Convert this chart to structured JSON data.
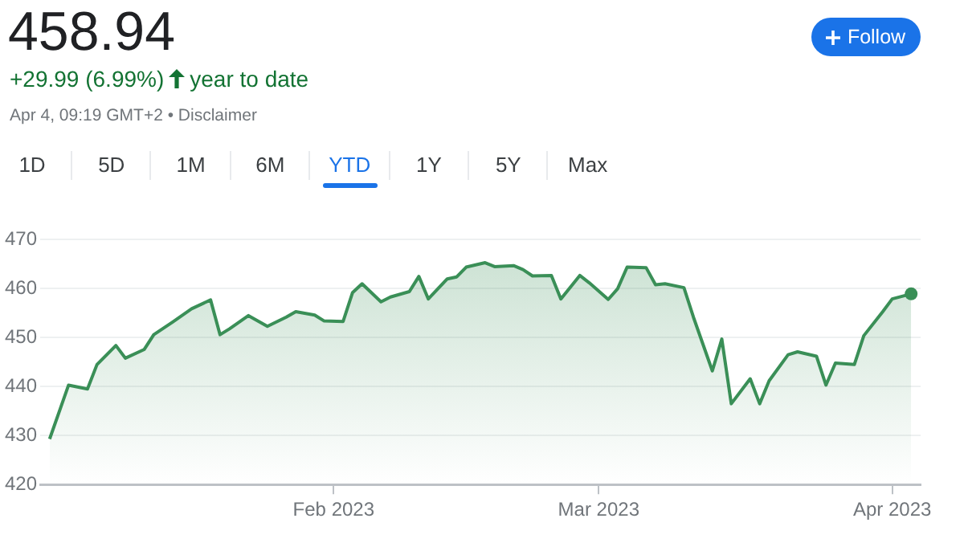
{
  "chart_data": {
    "type": "area",
    "title": "458.94",
    "annotations": [
      "+29.99 (6.99%)",
      "year to date",
      "Apr 4, 09:19 GMT+2 • Disclaimer",
      "Follow",
      "1D",
      "5D",
      "1M",
      "6M",
      "YTD",
      "1Y",
      "5Y",
      "Max"
    ],
    "x": [
      "2023-01-02",
      "2023-01-04",
      "2023-01-06",
      "2023-01-07",
      "2023-01-09",
      "2023-01-10",
      "2023-01-12",
      "2023-01-13",
      "2023-01-15",
      "2023-01-17",
      "2023-01-19",
      "2023-01-20",
      "2023-01-21",
      "2023-01-23",
      "2023-01-25",
      "2023-01-27",
      "2023-01-28",
      "2023-01-30",
      "2023-01-31",
      "2023-02-02",
      "2023-02-03",
      "2023-02-04",
      "2023-02-06",
      "2023-02-07",
      "2023-02-09",
      "2023-02-10",
      "2023-02-11",
      "2023-02-13",
      "2023-02-14",
      "2023-02-15",
      "2023-02-17",
      "2023-02-18",
      "2023-02-20",
      "2023-02-21",
      "2023-02-22",
      "2023-02-24",
      "2023-02-25",
      "2023-02-27",
      "2023-02-28",
      "2023-03-02",
      "2023-03-03",
      "2023-03-04",
      "2023-03-06",
      "2023-03-07",
      "2023-03-08",
      "2023-03-10",
      "2023-03-11",
      "2023-03-13",
      "2023-03-14",
      "2023-03-15",
      "2023-03-17",
      "2023-03-18",
      "2023-03-19",
      "2023-03-21",
      "2023-03-22",
      "2023-03-24",
      "2023-03-25",
      "2023-03-26",
      "2023-03-28",
      "2023-03-29",
      "2023-03-31",
      "2023-04-01",
      "2023-04-03"
    ],
    "series": [
      {
        "color": "#3a8f57",
        "values": [
          429.3,
          440.3,
          439.5,
          444.5,
          448.4,
          445.8,
          447.6,
          450.6,
          453.2,
          455.9,
          457.7,
          450.6,
          451.8,
          454.5,
          452.3,
          454.2,
          455.3,
          454.6,
          453.4,
          453.3,
          459.2,
          461.0,
          457.3,
          458.3,
          459.4,
          462.5,
          457.9,
          462.0,
          462.4,
          464.4,
          465.3,
          464.5,
          464.7,
          463.9,
          462.6,
          462.7,
          457.9,
          462.7,
          461.2,
          457.8,
          460.0,
          464.4,
          464.3,
          460.8,
          461.0,
          460.2,
          454.2,
          443.2,
          449.7,
          436.5,
          441.6,
          436.5,
          441.2,
          446.5,
          447.1,
          446.2,
          440.3,
          444.8,
          444.5,
          450.4,
          455.3,
          457.9,
          458.94
        ]
      }
    ],
    "xlim": [
      "2023-01-01",
      "2023-04-04"
    ],
    "xticks": [
      {
        "value": "2023-02-01",
        "label": "Feb 2023"
      },
      {
        "value": "2023-03-01",
        "label": "Mar 2023"
      },
      {
        "value": "2023-04-01",
        "label": "Apr 2023"
      }
    ],
    "ylim": [
      420,
      470
    ],
    "yticks": [
      420,
      430,
      440,
      450,
      460,
      470
    ],
    "grid": "y",
    "marker": "none",
    "legend": false
  }
}
